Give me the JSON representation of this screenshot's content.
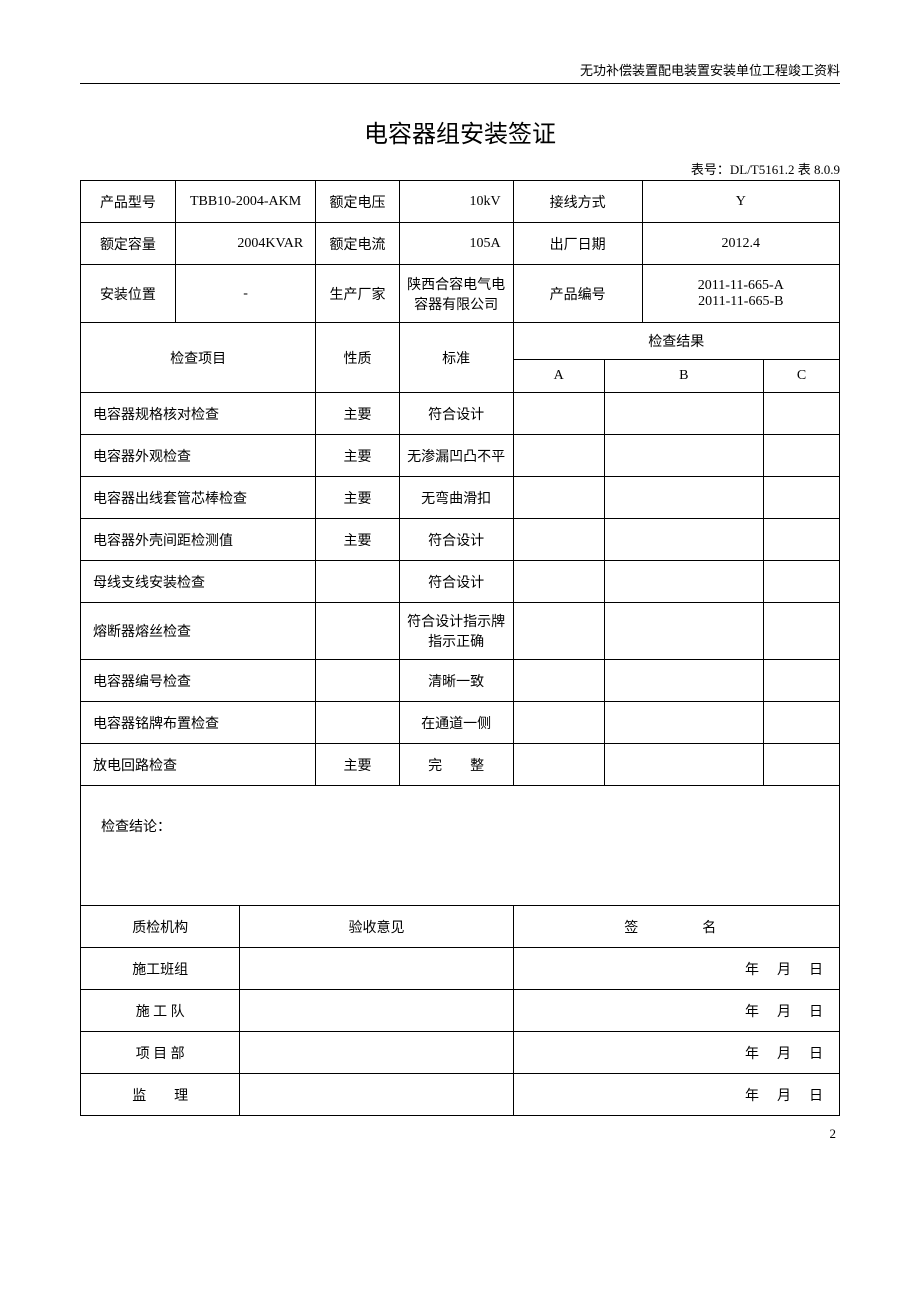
{
  "header": {
    "right_text": "无功补偿装置配电装置安装单位工程竣工资料"
  },
  "title": "电容器组安装签证",
  "table_number_prefix": "表号：",
  "table_number": "DL/T5161.2 表 8.0.9",
  "spec_rows": [
    {
      "l1": "产品型号",
      "v1": "TBB10-2004-AKM",
      "l2": "额定电压",
      "v2": "10kV",
      "l3": "接线方式",
      "v3": "Y"
    },
    {
      "l1": "额定容量",
      "v1": "2004KVAR",
      "l2": "额定电流",
      "v2": "105A",
      "l3": "出厂日期",
      "v3": "2012.4"
    },
    {
      "l1": "安装位置",
      "v1": "-",
      "l2": "生产厂家",
      "v2": "陕西合容电气电容器有限公司",
      "l3": "产品编号",
      "v3": "2011-11-665-A\n2011-11-665-B"
    }
  ],
  "check_header": {
    "item": "检查项目",
    "nature": "性质",
    "standard": "标准",
    "result": "检查结果",
    "a": "A",
    "b": "B",
    "c": "C"
  },
  "check_rows": [
    {
      "item": "电容器规格核对检查",
      "nature": "主要",
      "standard": "符合设计",
      "a": "",
      "b": "",
      "c": ""
    },
    {
      "item": "电容器外观检查",
      "nature": "主要",
      "standard": "无渗漏凹凸不平",
      "a": "",
      "b": "",
      "c": ""
    },
    {
      "item": "电容器出线套管芯棒检查",
      "nature": "主要",
      "standard": "无弯曲滑扣",
      "a": "",
      "b": "",
      "c": ""
    },
    {
      "item": "电容器外壳间距检测值",
      "nature": "主要",
      "standard": "符合设计",
      "a": "",
      "b": "",
      "c": ""
    },
    {
      "item": "母线支线安装检查",
      "nature": "",
      "standard": "符合设计",
      "a": "",
      "b": "",
      "c": ""
    },
    {
      "item": "熔断器熔丝检查",
      "nature": "",
      "standard": "符合设计指示牌指示正确",
      "a": "",
      "b": "",
      "c": ""
    },
    {
      "item": "电容器编号检查",
      "nature": "",
      "standard": "清晰一致",
      "a": "",
      "b": "",
      "c": ""
    },
    {
      "item": "电容器铭牌布置检查",
      "nature": "",
      "standard": "在通道一侧",
      "a": "",
      "b": "",
      "c": ""
    },
    {
      "item": "放电回路检查",
      "nature": "主要",
      "standard": "完　　整",
      "a": "",
      "b": "",
      "c": ""
    }
  ],
  "conclusion_label": "检查结论：",
  "footer_header": {
    "org": "质检机构",
    "opinion": "验收意见",
    "sign": "签　　名"
  },
  "footer_rows": [
    {
      "org": "施工班组",
      "opinion": "",
      "date": "年　月　日"
    },
    {
      "org": "施 工 队",
      "opinion": "",
      "date": "年　月　日"
    },
    {
      "org": "项 目 部",
      "opinion": "",
      "date": "年　月　日"
    },
    {
      "org": "监　　理",
      "opinion": "",
      "date": "年　月　日"
    }
  ],
  "page_number": "2"
}
